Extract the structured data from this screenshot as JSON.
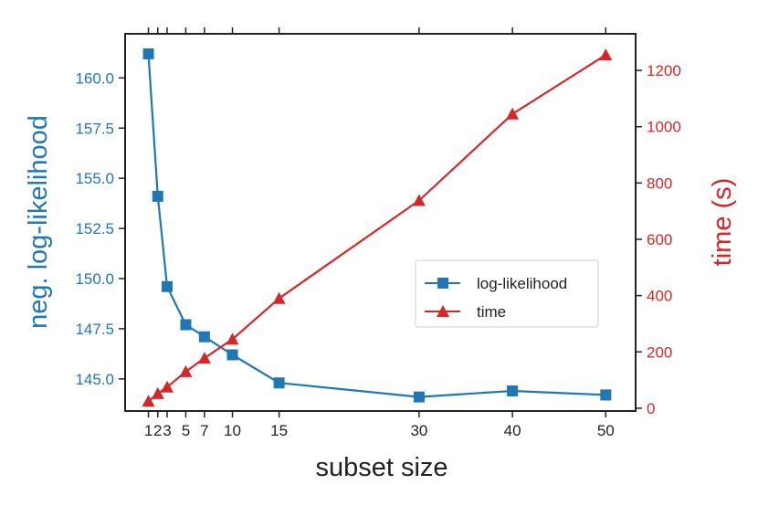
{
  "chart_data": {
    "type": "line",
    "xlabel": "subset size",
    "ylabel_left": "neg. log-likelihood",
    "ylabel_right": "time (s)",
    "x": [
      1,
      2,
      3,
      5,
      7,
      10,
      15,
      30,
      40,
      50
    ],
    "x_ticks": [
      1,
      2,
      3,
      5,
      7,
      10,
      15,
      30,
      40,
      50
    ],
    "x_tick_labels": [
      "1",
      "2",
      "3",
      "5",
      "7",
      "10",
      "15",
      "30",
      "40",
      "50"
    ],
    "xlim": [
      -1.5,
      53.2
    ],
    "ylim_left": [
      143.4,
      162.2
    ],
    "ylim_right": [
      -10,
      1330
    ],
    "yticks_left": [
      145.0,
      147.5,
      150.0,
      152.5,
      155.0,
      157.5,
      160.0
    ],
    "yticks_left_labels": [
      "145.0",
      "147.5",
      "150.0",
      "152.5",
      "155.0",
      "157.5",
      "160.0"
    ],
    "yticks_right": [
      0,
      200,
      400,
      600,
      800,
      1000,
      1200
    ],
    "yticks_right_labels": [
      "0",
      "200",
      "400",
      "600",
      "800",
      "1000",
      "1200"
    ],
    "series": [
      {
        "name": "log-likelihood",
        "axis": "left",
        "marker": "square",
        "color": "#1f77b4",
        "values": [
          161.2,
          154.1,
          149.6,
          147.7,
          147.1,
          146.2,
          144.8,
          144.1,
          144.4,
          144.2
        ]
      },
      {
        "name": "time",
        "axis": "right",
        "marker": "triangle",
        "color": "#d62728",
        "values": [
          25,
          52,
          75,
          130,
          178,
          245,
          390,
          738,
          1045,
          1255
        ]
      }
    ],
    "legend_position": "right-center",
    "grid": false
  }
}
